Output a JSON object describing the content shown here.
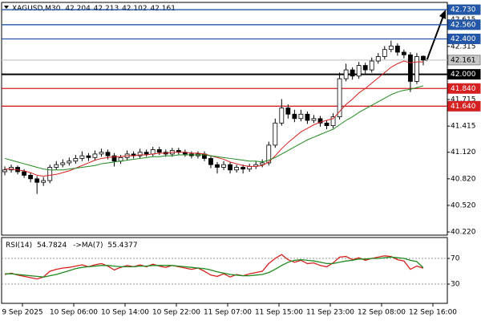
{
  "chart_data": [
    {
      "type": "candlestick",
      "symbol": "XAGUSD,M30",
      "ohlc": [
        42.204,
        42.213,
        42.102,
        42.161
      ],
      "open": [
        40.9,
        40.92,
        40.95,
        40.9,
        40.86,
        40.82,
        40.78,
        40.8,
        40.95,
        40.98,
        41.0,
        41.02,
        41.05,
        41.08,
        41.06,
        41.1,
        41.12,
        41.08,
        41.02,
        41.06,
        41.1,
        41.08,
        41.12,
        41.1,
        41.15,
        41.12,
        41.1,
        41.14,
        41.12,
        41.1,
        41.08,
        41.1,
        41.05,
        40.98,
        40.95,
        40.98,
        40.92,
        40.95,
        40.93,
        40.96,
        40.98,
        41.0,
        41.2,
        41.45,
        41.62,
        41.55,
        41.5,
        41.55,
        41.48,
        41.5,
        41.45,
        41.42,
        41.52,
        41.95,
        42.05,
        41.98,
        42.1,
        42.05,
        42.15,
        42.2,
        42.28,
        42.32,
        42.25,
        42.22,
        41.92,
        42.204
      ],
      "high": [
        40.96,
        40.98,
        40.97,
        40.93,
        40.89,
        40.85,
        40.84,
        40.98,
        41.02,
        41.04,
        41.06,
        41.09,
        41.13,
        41.11,
        41.14,
        41.16,
        41.15,
        41.11,
        41.09,
        41.14,
        41.13,
        41.16,
        41.15,
        41.18,
        41.18,
        41.15,
        41.17,
        41.17,
        41.15,
        41.13,
        41.13,
        41.13,
        41.08,
        41.01,
        41.02,
        41.01,
        40.98,
        40.98,
        40.99,
        41.02,
        41.04,
        41.24,
        41.5,
        41.72,
        41.66,
        41.6,
        41.6,
        41.58,
        41.54,
        41.53,
        41.48,
        41.56,
        42.02,
        42.12,
        42.08,
        42.14,
        42.13,
        42.19,
        42.24,
        42.32,
        42.38,
        42.35,
        42.28,
        42.25,
        42.24,
        42.213
      ],
      "low": [
        40.86,
        40.89,
        40.87,
        40.83,
        40.78,
        40.65,
        40.74,
        40.77,
        40.92,
        40.95,
        40.97,
        40.99,
        41.02,
        41.02,
        41.03,
        41.07,
        41.04,
        40.96,
        40.99,
        41.03,
        41.05,
        41.05,
        41.07,
        41.07,
        41.09,
        41.07,
        41.07,
        41.09,
        41.07,
        41.05,
        41.05,
        41.02,
        40.94,
        40.88,
        40.92,
        40.88,
        40.89,
        40.88,
        40.9,
        40.93,
        40.95,
        40.97,
        41.17,
        41.42,
        41.5,
        41.46,
        41.47,
        41.44,
        41.45,
        41.41,
        41.38,
        41.39,
        41.49,
        41.92,
        41.94,
        41.95,
        42.01,
        42.02,
        42.12,
        42.17,
        42.25,
        42.21,
        42.18,
        41.8,
        41.89,
        42.102
      ],
      "close": [
        40.92,
        40.95,
        40.9,
        40.86,
        40.82,
        40.78,
        40.8,
        40.95,
        40.98,
        41.0,
        41.02,
        41.05,
        41.08,
        41.06,
        41.1,
        41.12,
        41.08,
        41.02,
        41.06,
        41.1,
        41.08,
        41.12,
        41.1,
        41.15,
        41.12,
        41.1,
        41.14,
        41.12,
        41.1,
        41.08,
        41.1,
        41.05,
        40.98,
        40.95,
        40.98,
        40.92,
        40.95,
        40.93,
        40.96,
        40.98,
        41.0,
        41.2,
        41.45,
        41.62,
        41.55,
        41.5,
        41.55,
        41.48,
        41.5,
        41.45,
        41.42,
        41.52,
        41.95,
        42.05,
        41.98,
        42.1,
        42.05,
        42.15,
        42.2,
        42.28,
        42.32,
        42.25,
        42.22,
        41.92,
        42.2,
        42.161
      ],
      "series": [
        {
          "color": "#d61f1f",
          "values": [
            40.93,
            40.93,
            40.92,
            40.91,
            40.89,
            40.86,
            40.85,
            40.86,
            40.87,
            40.89,
            40.91,
            40.94,
            40.97,
            41.0,
            41.03,
            41.05,
            41.06,
            41.07,
            41.07,
            41.08,
            41.08,
            41.09,
            41.09,
            41.1,
            41.11,
            41.11,
            41.12,
            41.12,
            41.12,
            41.11,
            41.11,
            41.1,
            41.08,
            41.06,
            41.04,
            41.01,
            40.99,
            40.97,
            40.96,
            40.96,
            40.97,
            41.01,
            41.08,
            41.16,
            41.23,
            41.29,
            41.35,
            41.39,
            41.43,
            41.46,
            41.48,
            41.5,
            41.58,
            41.66,
            41.72,
            41.79,
            41.84,
            41.9,
            41.96,
            42.02,
            42.08,
            42.12,
            42.15,
            42.13,
            42.14,
            42.14
          ]
        },
        {
          "color": "#1f8a1f",
          "values": [
            41.05,
            41.03,
            41.01,
            40.99,
            40.97,
            40.95,
            40.93,
            40.92,
            40.92,
            40.92,
            40.93,
            40.94,
            40.95,
            40.96,
            40.97,
            40.99,
            41.0,
            41.01,
            41.02,
            41.03,
            41.04,
            41.05,
            41.06,
            41.07,
            41.07,
            41.08,
            41.08,
            41.09,
            41.09,
            41.09,
            41.09,
            41.09,
            41.08,
            41.07,
            41.06,
            41.05,
            41.04,
            41.03,
            41.02,
            41.02,
            41.01,
            41.03,
            41.06,
            41.1,
            41.14,
            41.18,
            41.22,
            41.26,
            41.29,
            41.32,
            41.35,
            41.38,
            41.43,
            41.48,
            41.52,
            41.57,
            41.61,
            41.65,
            41.69,
            41.73,
            41.77,
            41.8,
            41.82,
            41.83,
            41.85,
            41.87
          ]
        }
      ],
      "ylim": [
        40.184,
        42.812
      ],
      "yticks": [
        42.615,
        42.315,
        41.715,
        41.415,
        {
          "value": 41.12,
          "label": "41.120"
        },
        {
          "value": 40.82,
          "label": "40.820"
        },
        {
          "value": 40.52,
          "label": "40.520"
        },
        {
          "value": 40.22,
          "label": "40.220"
        }
      ],
      "levels": [
        {
          "value": 42.73,
          "label": "42.730",
          "color": "#2356a6"
        },
        {
          "value": 42.56,
          "label": "42.560",
          "color": "#2356a6"
        },
        {
          "value": 42.4,
          "label": "42.400",
          "color": "#2356a6"
        },
        {
          "value": 42.161,
          "label": "42.161",
          "color": "#c8c8c8"
        },
        {
          "value": 42.0,
          "label": "42.000",
          "color": "#000000"
        },
        {
          "value": 41.84,
          "label": "41.840",
          "color": "#d42020"
        },
        {
          "value": 41.64,
          "label": "41.640",
          "color": "#d42020"
        }
      ]
    },
    {
      "type": "line",
      "indicator_label": "RSI(14)",
      "indicator_value": 54.7824,
      "ma_label": "->MA(7)",
      "ma_value": 55.4377,
      "series": [
        {
          "color": "#d61f1f",
          "values": [
            45,
            47,
            44,
            42,
            40,
            38,
            41,
            50,
            53,
            55,
            56,
            58,
            60,
            57,
            60,
            62,
            58,
            52,
            56,
            59,
            57,
            60,
            57,
            61,
            58,
            56,
            59,
            57,
            55,
            53,
            55,
            50,
            44,
            42,
            46,
            41,
            45,
            43,
            46,
            48,
            50,
            62,
            70,
            76,
            68,
            64,
            67,
            62,
            63,
            59,
            57,
            63,
            72,
            73,
            68,
            71,
            67,
            70,
            72,
            74,
            73,
            68,
            66,
            53,
            58,
            54.7824
          ]
        },
        {
          "color": "#1f8a1f",
          "values": [
            46,
            46,
            45,
            44,
            43,
            42,
            41,
            43,
            45,
            48,
            51,
            54,
            56,
            57,
            58,
            59,
            59,
            58,
            57,
            57,
            57,
            58,
            58,
            59,
            59,
            59,
            59,
            58,
            57,
            56,
            55,
            54,
            52,
            49,
            47,
            45,
            44,
            43,
            43,
            44,
            45,
            48,
            53,
            59,
            64,
            67,
            68,
            67,
            66,
            64,
            62,
            62,
            64,
            66,
            67,
            69,
            69,
            70,
            70,
            71,
            72,
            71,
            70,
            67,
            65,
            55.4377
          ]
        }
      ],
      "ylim": [
        0,
        102.5
      ],
      "yticks": [
        70,
        30
      ],
      "grid": true,
      "xtick_labels": [
        "9 Sep 2025",
        "10 Sep 06:00",
        "10 Sep 14:00",
        "10 Sep 22:00",
        "11 Sep 07:00",
        "11 Sep 15:00",
        "11 Sep 23:00",
        "12 Sep 08:00",
        "12 Sep 16:00"
      ]
    }
  ]
}
